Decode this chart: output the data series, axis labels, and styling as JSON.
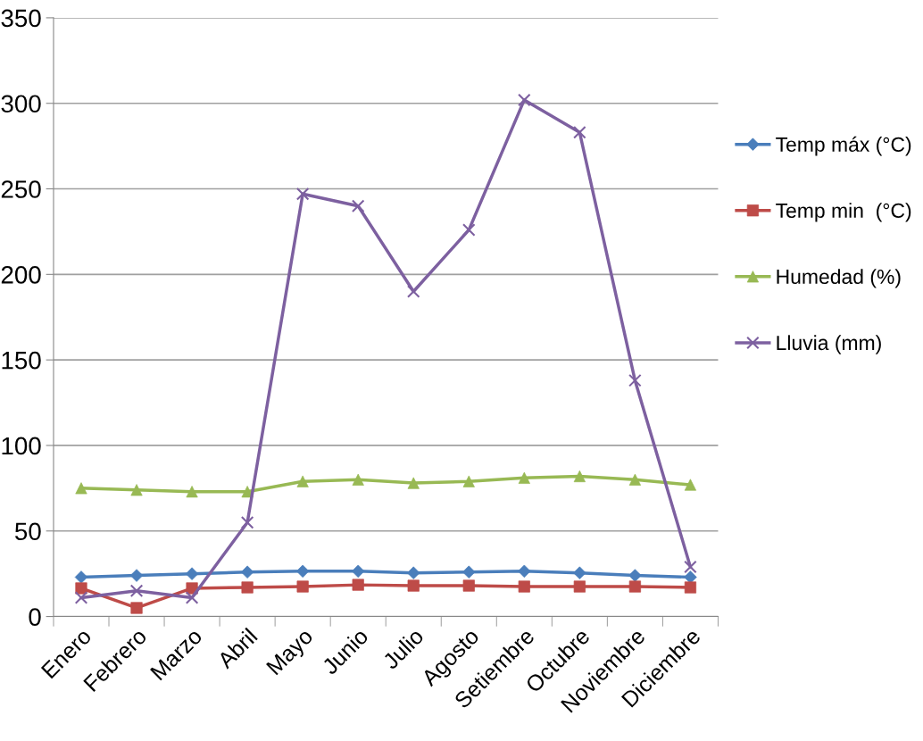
{
  "chart_data": {
    "type": "line",
    "categories": [
      "Enero",
      "Febrero",
      "Marzo",
      "Abril",
      "Mayo",
      "Junio",
      "Julio",
      "Agosto",
      "Setiembre",
      "Octubre",
      "Noviembre",
      "Diciembre"
    ],
    "series": [
      {
        "name": "Temp máx (°C)",
        "color": "#4a7ebb",
        "marker": "diamond",
        "values": [
          23,
          24,
          25,
          26,
          26.5,
          26.5,
          25.5,
          26,
          26.5,
          25.5,
          24,
          23
        ]
      },
      {
        "name": "Temp min  (°C)",
        "color": "#be4b48",
        "marker": "square",
        "values": [
          16.5,
          5,
          16.5,
          17,
          17.5,
          18.5,
          18,
          18,
          17.5,
          17.5,
          17.5,
          17
        ]
      },
      {
        "name": "Humedad (%)",
        "color": "#98b954",
        "marker": "triangle",
        "values": [
          75,
          74,
          73,
          73,
          79,
          80,
          78,
          79,
          81,
          82,
          80,
          77
        ]
      },
      {
        "name": "Lluvia (mm)",
        "color": "#7d60a0",
        "marker": "cross",
        "values": [
          11,
          15,
          11,
          55,
          247,
          240,
          190,
          226,
          302,
          283,
          138,
          29
        ]
      }
    ],
    "ylim": [
      0,
      350
    ],
    "yticks": [
      0,
      50,
      100,
      150,
      200,
      250,
      300,
      350
    ],
    "grid": "y",
    "legend": "right",
    "line_style": "solid"
  }
}
